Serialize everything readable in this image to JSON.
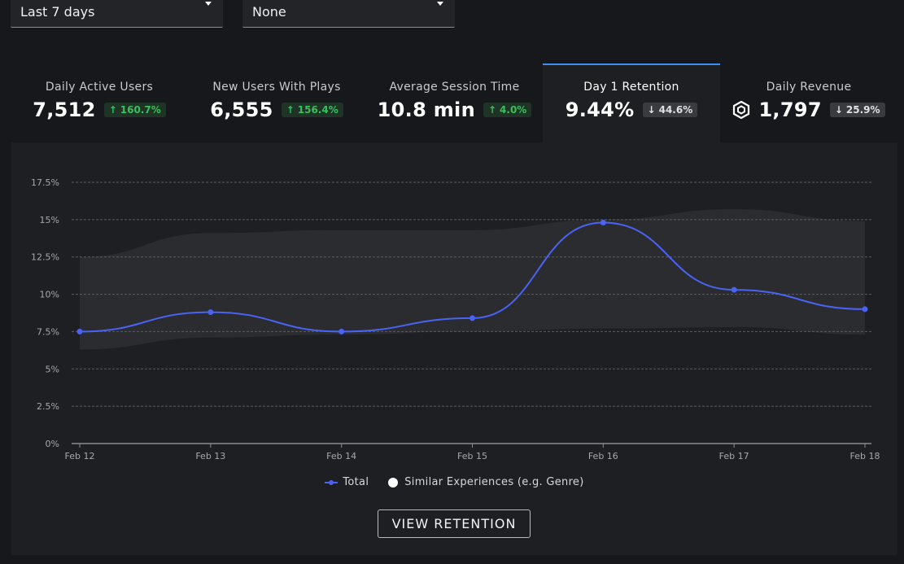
{
  "filters": {
    "date_range": "Last 7 days",
    "compare": "None"
  },
  "tabs": [
    {
      "label": "Daily Active Users",
      "value": "7,512",
      "change": "160.7%",
      "direction": "up",
      "icon": ""
    },
    {
      "label": "New Users With Plays",
      "value": "6,555",
      "change": "156.4%",
      "direction": "up",
      "icon": ""
    },
    {
      "label": "Average Session Time",
      "value": "10.8 min",
      "change": "4.0%",
      "direction": "up",
      "icon": ""
    },
    {
      "label": "Day 1 Retention",
      "value": "9.44%",
      "change": "44.6%",
      "direction": "down",
      "icon": "",
      "active": true
    },
    {
      "label": "Daily Revenue",
      "value": "1,797",
      "change": "25.9%",
      "direction": "down",
      "icon": "robux-icon"
    }
  ],
  "chart_data": {
    "type": "line",
    "x": [
      "Feb 12",
      "Feb 13",
      "Feb 14",
      "Feb 15",
      "Feb 16",
      "Feb 17",
      "Feb 18"
    ],
    "ylim": [
      0,
      17.5
    ],
    "yticks": [
      "0%",
      "2.5%",
      "5%",
      "7.5%",
      "10%",
      "12.5%",
      "15%",
      "17.5%"
    ],
    "ytick_values": [
      0,
      2.5,
      5,
      7.5,
      10,
      12.5,
      15,
      17.5
    ],
    "grid": true,
    "series": [
      {
        "name": "Total",
        "values": [
          7.5,
          8.8,
          7.5,
          8.4,
          14.8,
          10.3,
          9.0
        ],
        "color": "#4a63f5"
      }
    ],
    "band": {
      "name": "Similar Experiences (e.g. Genre)",
      "upper": [
        12.5,
        14.1,
        14.3,
        14.3,
        15.0,
        15.7,
        14.9
      ],
      "lower": [
        6.3,
        7.1,
        7.3,
        7.5,
        7.7,
        7.8,
        7.3
      ],
      "color": "#2b2c30"
    },
    "legend_position": "bottom-center"
  },
  "legend": {
    "total": "Total",
    "similar": "Similar Experiences (e.g. Genre)"
  },
  "view_button": "VIEW RETENTION",
  "colors": {
    "accent": "#3a8ef6",
    "line": "#4a63f5",
    "up": "#37c25c"
  }
}
